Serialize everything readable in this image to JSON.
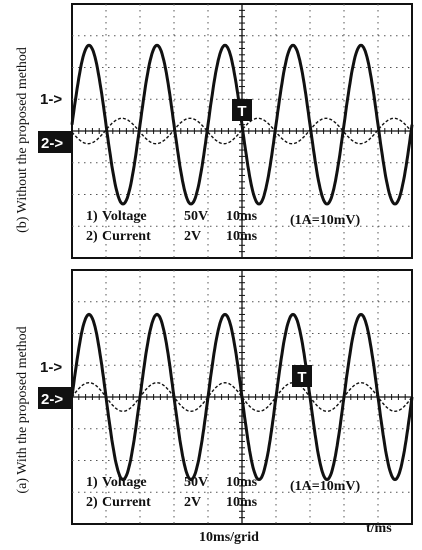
{
  "chart_data": [
    {
      "type": "line",
      "title": "",
      "side_label": "(b) Without the proposed method",
      "xlabel": "",
      "ylabel": "",
      "grid": true,
      "x_divisions": 10,
      "y_divisions": 8,
      "markers": {
        "ch1": "1->",
        "ch2": "2->",
        "trigger": "T"
      },
      "settings": [
        {
          "channel": "1)",
          "name": "Voltage",
          "scale": "50V",
          "time": "10ms"
        },
        {
          "channel": "2)",
          "name": "Current",
          "scale": "2V",
          "time": "10ms"
        }
      ],
      "note": "(1A=10mV)",
      "series": [
        {
          "channel": 1,
          "waveform": "sine",
          "amplitude_div": 2.5,
          "period_div": 2.0,
          "phase_deg": 0,
          "offset_div": 0.2
        },
        {
          "channel": 2,
          "waveform": "sine",
          "amplitude_div": 0.4,
          "period_div": 2.0,
          "phase_deg": 185,
          "offset_div": 0.0
        }
      ]
    },
    {
      "type": "line",
      "title": "",
      "side_label": "(a) With the proposed method",
      "xlabel": "10ms/grid",
      "xunit_label": "t/ms",
      "ylabel": "",
      "grid": true,
      "x_divisions": 10,
      "y_divisions": 8,
      "markers": {
        "ch1": "1->",
        "ch2": "2->",
        "trigger": "T"
      },
      "settings": [
        {
          "channel": "1)",
          "name": "Voltage",
          "scale": "50V",
          "time": "10ms"
        },
        {
          "channel": "2)",
          "name": "Current",
          "scale": "2V",
          "time": "10ms"
        }
      ],
      "note": "(1A=10mV)",
      "series": [
        {
          "channel": 1,
          "waveform": "sine",
          "amplitude_div": 2.6,
          "period_div": 2.0,
          "phase_deg": 0,
          "offset_div": 0.0
        },
        {
          "channel": 2,
          "waveform": "sine",
          "amplitude_div": 0.45,
          "period_div": 2.0,
          "phase_deg": 0,
          "offset_div": 0.0
        }
      ]
    }
  ]
}
